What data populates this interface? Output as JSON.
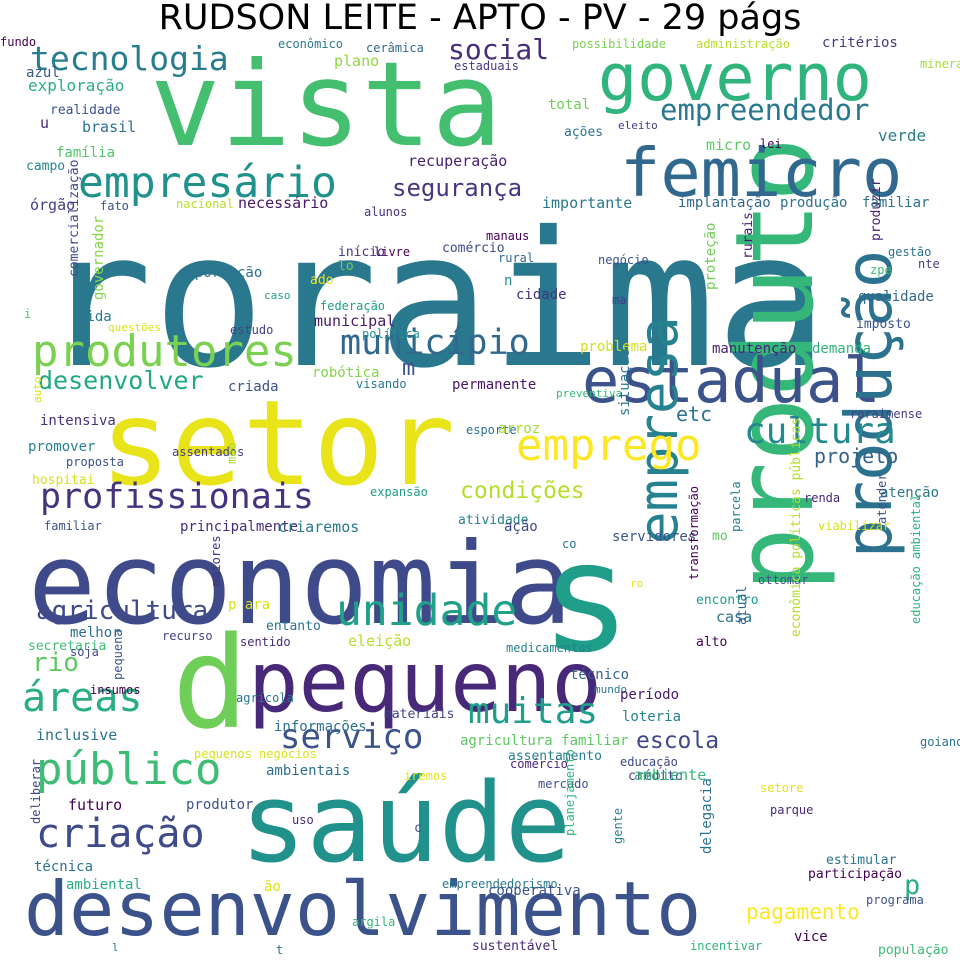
{
  "title": "RUDSON LEITE - APTO - PV - 29 págs",
  "colors": {
    "background": "#ffffff",
    "palette": [
      "#440154",
      "#414487",
      "#2a788e",
      "#22a884",
      "#7ad151",
      "#fde725"
    ]
  },
  "words": [
    {
      "text": "roraima",
      "color": "#2a788e",
      "v": 0
    },
    {
      "text": "setor",
      "color": "#e8e419",
      "v": 0
    },
    {
      "text": "economia",
      "color": "#3e4a89",
      "v": 0
    },
    {
      "text": "saúde",
      "color": "#21918c",
      "v": 0
    },
    {
      "text": "vista",
      "color": "#44bf70",
      "v": 0
    },
    {
      "text": "s",
      "color": "#1f9e89",
      "v": 0
    },
    {
      "text": "produto",
      "color": "#35b779",
      "v": 1
    },
    {
      "text": "d",
      "color": "#6ece58",
      "v": 0
    },
    {
      "text": "pequeno",
      "color": "#482878",
      "v": 0
    },
    {
      "text": "desenvolvimento",
      "color": "#3b528b",
      "v": 0
    },
    {
      "text": "governo",
      "color": "#2fb47c",
      "v": 0
    },
    {
      "text": "femicro",
      "color": "#31688e",
      "v": 0
    },
    {
      "text": "estadual",
      "color": "#3b528b",
      "v": 0
    },
    {
      "text": "produção",
      "color": "#2c728e",
      "v": 1
    },
    {
      "text": "empresa",
      "color": "#26828e",
      "v": 1
    },
    {
      "text": "produtores",
      "color": "#7ad151",
      "v": 0
    },
    {
      "text": "empresário",
      "color": "#21918c",
      "v": 0
    },
    {
      "text": "tecnologia",
      "color": "#287d8e",
      "v": 0
    },
    {
      "text": "público",
      "color": "#3dbc74",
      "v": 0
    },
    {
      "text": "unidade",
      "color": "#1fa088",
      "v": 0
    },
    {
      "text": "emprego",
      "color": "#fde725",
      "v": 0
    },
    {
      "text": "profissionais",
      "color": "#46337e",
      "v": 0
    },
    {
      "text": "município",
      "color": "#31688e",
      "v": 0
    },
    {
      "text": "cultura",
      "color": "#23898e",
      "v": 0
    },
    {
      "text": "criação",
      "color": "#3e4a89",
      "v": 0
    },
    {
      "text": "serviço",
      "color": "#3b528b",
      "v": 0
    },
    {
      "text": "muitas",
      "color": "#1f9e89",
      "v": 0
    },
    {
      "text": "áreas",
      "color": "#29af7f",
      "v": 0
    },
    {
      "text": "empreendedor",
      "color": "#2a788e",
      "v": 0
    },
    {
      "text": "agricultura",
      "color": "#3e4a89",
      "v": 0
    },
    {
      "text": "desenvolver",
      "color": "#22a884",
      "v": 0
    },
    {
      "text": "social",
      "color": "#472d7b",
      "v": 0
    },
    {
      "text": "segurança",
      "color": "#453882",
      "v": 0
    },
    {
      "text": "condições",
      "color": "#b5de2b",
      "v": 0
    },
    {
      "text": "p",
      "color": "#29af7f",
      "v": 0
    },
    {
      "text": "rio",
      "color": "#5ec962",
      "v": 0
    },
    {
      "text": "escola",
      "color": "#3f4788",
      "v": 0
    },
    {
      "text": "pagamento",
      "color": "#fde725",
      "v": 0
    },
    {
      "text": "projeto",
      "color": "#33638d",
      "v": 0
    },
    {
      "text": "etc",
      "color": "#2c728e",
      "v": 0
    },
    {
      "text": "m",
      "color": "#3b528b",
      "v": 0
    },
    {
      "text": "recuperação",
      "color": "#482173",
      "v": 0
    },
    {
      "text": "necessário",
      "color": "#481668",
      "v": 0
    },
    {
      "text": "importante",
      "color": "#2a788e",
      "v": 0
    },
    {
      "text": "implantação",
      "color": "#31688e",
      "v": 0
    },
    {
      "text": "produção",
      "color": "#2c728e",
      "v": 0
    },
    {
      "text": "familiar",
      "color": "#2c728e",
      "v": 0
    },
    {
      "text": "econômico",
      "color": "#2a788e",
      "v": 0
    },
    {
      "text": "cerâmica",
      "color": "#31688e",
      "v": 0
    },
    {
      "text": "estaduais",
      "color": "#453882",
      "v": 0
    },
    {
      "text": "possibilidade",
      "color": "#7ad151",
      "v": 0
    },
    {
      "text": "administração",
      "color": "#b8de29",
      "v": 0
    },
    {
      "text": "critérios",
      "color": "#443983",
      "v": 0
    },
    {
      "text": "azul",
      "color": "#38598c",
      "v": 0
    },
    {
      "text": "exploração",
      "color": "#29af7f",
      "v": 0
    },
    {
      "text": "plano",
      "color": "#90d743",
      "v": 0
    },
    {
      "text": "realidade",
      "color": "#3b528b",
      "v": 0
    },
    {
      "text": "u",
      "color": "#482677",
      "v": 0
    },
    {
      "text": "brasil",
      "color": "#2c728e",
      "v": 0
    },
    {
      "text": "família",
      "color": "#52c569",
      "v": 0
    },
    {
      "text": "campo",
      "color": "#23898e",
      "v": 0
    },
    {
      "text": "órgão",
      "color": "#433e85",
      "v": 0
    },
    {
      "text": "fato",
      "color": "#3b528b",
      "v": 0
    },
    {
      "text": "nacional",
      "color": "#b5de2b",
      "v": 0
    },
    {
      "text": "alunos",
      "color": "#463480",
      "v": 0
    },
    {
      "text": "total",
      "color": "#6ece58",
      "v": 0
    },
    {
      "text": "eleito",
      "color": "#443983",
      "v": 0
    },
    {
      "text": "ações",
      "color": "#2d708e",
      "v": 0
    },
    {
      "text": "micro",
      "color": "#5ec962",
      "v": 0
    },
    {
      "text": "lei",
      "color": "#440154",
      "v": 0
    },
    {
      "text": "verde",
      "color": "#287d8e",
      "v": 0
    },
    {
      "text": "mineração",
      "color": "#a5db36",
      "v": 0
    },
    {
      "text": "produzir",
      "color": "#481f70",
      "v": 1
    },
    {
      "text": "gestão",
      "color": "#2c728e",
      "v": 0
    },
    {
      "text": "zpe",
      "color": "#3dbc74",
      "v": 0
    },
    {
      "text": "nte",
      "color": "#433e85",
      "v": 0
    },
    {
      "text": "i",
      "color": "#52c569",
      "v": 0
    },
    {
      "text": "comercialização",
      "color": "#3e4a89",
      "v": 1
    },
    {
      "text": "exportação",
      "color": "#2c728e",
      "v": 0
    },
    {
      "text": "caso",
      "color": "#1fa088",
      "v": 0
    },
    {
      "text": "governador",
      "color": "#86d549",
      "v": 1
    },
    {
      "text": "vida",
      "color": "#2a788e",
      "v": 0
    },
    {
      "text": "questões",
      "color": "#d8e219",
      "v": 0
    },
    {
      "text": "início",
      "color": "#46327e",
      "v": 0
    },
    {
      "text": "livre",
      "color": "#440154",
      "v": 0
    },
    {
      "text": "comércio",
      "color": "#3e4a89",
      "v": 0
    },
    {
      "text": "lo",
      "color": "#6ece58",
      "v": 0
    },
    {
      "text": "ado",
      "color": "#e5e419",
      "v": 0
    },
    {
      "text": "federação",
      "color": "#1f9e89",
      "v": 0
    },
    {
      "text": "municipal",
      "color": "#481a6c",
      "v": 0
    },
    {
      "text": "política",
      "color": "#21918c",
      "v": 0
    },
    {
      "text": "estudo",
      "color": "#414487",
      "v": 0
    },
    {
      "text": "manaus",
      "color": "#440154",
      "v": 0
    },
    {
      "text": "rural",
      "color": "#31688e",
      "v": 0
    },
    {
      "text": "negócio",
      "color": "#3b528b",
      "v": 0
    },
    {
      "text": "n",
      "color": "#238a8d",
      "v": 0
    },
    {
      "text": "cidade",
      "color": "#46327e",
      "v": 0
    },
    {
      "text": "ma",
      "color": "#433e85",
      "v": 0
    },
    {
      "text": "proteção",
      "color": "#6ece58",
      "v": 1
    },
    {
      "text": "rurais",
      "color": "#481b6d",
      "v": 1
    },
    {
      "text": "qualidade",
      "color": "#31688e",
      "v": 0
    },
    {
      "text": "imposto",
      "color": "#3b528b",
      "v": 0
    },
    {
      "text": "problema",
      "color": "#d0e11c",
      "v": 0
    },
    {
      "text": "manutenção",
      "color": "#482475",
      "v": 0
    },
    {
      "text": "demanda",
      "color": "#2fb47c",
      "v": 0
    },
    {
      "text": "criada",
      "color": "#3b528b",
      "v": 0
    },
    {
      "text": "robótica",
      "color": "#86d549",
      "v": 0
    },
    {
      "text": "visando",
      "color": "#2a788e",
      "v": 0
    },
    {
      "text": "permanente",
      "color": "#481668",
      "v": 0
    },
    {
      "text": "preventiva",
      "color": "#35b779",
      "v": 0
    },
    {
      "text": "auto",
      "color": "#d8e219",
      "v": 1
    },
    {
      "text": "intensiva",
      "color": "#46327e",
      "v": 0
    },
    {
      "text": "esporte",
      "color": "#2c728e",
      "v": 0
    },
    {
      "text": "situação",
      "color": "#2a788e",
      "v": 1
    },
    {
      "text": "arroz",
      "color": "#a5db36",
      "v": 0
    },
    {
      "text": "roraimense",
      "color": "#433e85",
      "v": 0
    },
    {
      "text": "promover",
      "color": "#26828e",
      "v": 0
    },
    {
      "text": "proposta",
      "color": "#3b528b",
      "v": 0
    },
    {
      "text": "assentados",
      "color": "#433e85",
      "v": 0
    },
    {
      "text": "mão",
      "color": "#a5db36",
      "v": 1
    },
    {
      "text": "hospitai",
      "color": "#d8e219",
      "v": 0
    },
    {
      "text": "expansão",
      "color": "#1f9e89",
      "v": 0
    },
    {
      "text": "atenção",
      "color": "#2a788e",
      "v": 0
    },
    {
      "text": "renda",
      "color": "#482878",
      "v": 0
    },
    {
      "text": "familiar",
      "color": "#3b528b",
      "v": 0
    },
    {
      "text": "principalmente",
      "color": "#472d7b",
      "v": 0
    },
    {
      "text": "criaremos",
      "color": "#2a788e",
      "v": 0
    },
    {
      "text": "atividade",
      "color": "#287d8e",
      "v": 0
    },
    {
      "text": "ação",
      "color": "#3e4a89",
      "v": 0
    },
    {
      "text": "servidores",
      "color": "#39568c",
      "v": 0
    },
    {
      "text": "co",
      "color": "#2a788e",
      "v": 0
    },
    {
      "text": "mo",
      "color": "#5ec962",
      "v": 0
    },
    {
      "text": "parcela",
      "color": "#287d8e",
      "v": 1
    },
    {
      "text": "viabilizar",
      "color": "#d8e219",
      "v": 0
    },
    {
      "text": "atender",
      "color": "#3b528b",
      "v": 1
    },
    {
      "text": "maiores",
      "color": "#46327e",
      "v": 1
    },
    {
      "text": "ro",
      "color": "#e5e419",
      "v": 0
    },
    {
      "text": "transformação",
      "color": "#440154",
      "v": 1
    },
    {
      "text": "ottomar",
      "color": "#3b528b",
      "v": 0
    },
    {
      "text": "p ara",
      "color": "#d8e219",
      "v": 0
    },
    {
      "text": "encontro",
      "color": "#1f9e89",
      "v": 0
    },
    {
      "text": "casa",
      "color": "#2c728e",
      "v": 0
    },
    {
      "text": "melhor",
      "color": "#2c728e",
      "v": 0
    },
    {
      "text": "recurso",
      "color": "#414487",
      "v": 0
    },
    {
      "text": "entanto",
      "color": "#2c728e",
      "v": 0
    },
    {
      "text": "sentido",
      "color": "#482878",
      "v": 0
    },
    {
      "text": "eleição",
      "color": "#b5de2b",
      "v": 0
    },
    {
      "text": "secretaria",
      "color": "#3dbc74",
      "v": 0
    },
    {
      "text": "soja",
      "color": "#3e4a89",
      "v": 0
    },
    {
      "text": "medicamentos",
      "color": "#26828e",
      "v": 0
    },
    {
      "text": "alto",
      "color": "#440154",
      "v": 0
    },
    {
      "text": "atual",
      "color": "#33638d",
      "v": 1
    },
    {
      "text": "educação ambiental",
      "color": "#2fb47c",
      "v": 1
    },
    {
      "text": "econômica políticas públicas",
      "color": "#b5de2b",
      "v": 1
    },
    {
      "text": "pequena",
      "color": "#39568c",
      "v": 1
    },
    {
      "text": "insumos",
      "color": "#440154",
      "v": 0
    },
    {
      "text": "técnico",
      "color": "#33638d",
      "v": 0
    },
    {
      "text": "mundo",
      "color": "#2a788e",
      "v": 0
    },
    {
      "text": "período",
      "color": "#481a6c",
      "v": 0
    },
    {
      "text": "agrícola",
      "color": "#2a788e",
      "v": 0
    },
    {
      "text": "materiais",
      "color": "#414487",
      "v": 0
    },
    {
      "text": "loteria",
      "color": "#26828e",
      "v": 0
    },
    {
      "text": "informações",
      "color": "#2d708e",
      "v": 0
    },
    {
      "text": "inclusive",
      "color": "#2c728e",
      "v": 0
    },
    {
      "text": "agricultura familiar",
      "color": "#5ec962",
      "v": 0
    },
    {
      "text": "pequenos negócios",
      "color": "#d8e219",
      "v": 0
    },
    {
      "text": "ambientais",
      "color": "#2c728e",
      "v": 0
    },
    {
      "text": "assentamento",
      "color": "#287d8e",
      "v": 0
    },
    {
      "text": "educação",
      "color": "#3e4a89",
      "v": 0
    },
    {
      "text": "crédito",
      "color": "#414487",
      "v": 0
    },
    {
      "text": "iremos",
      "color": "#e5e419",
      "v": 0
    },
    {
      "text": "ambiente",
      "color": "#35b779",
      "v": 0
    },
    {
      "text": "mercado",
      "color": "#3b528b",
      "v": 0
    },
    {
      "text": "futuro",
      "color": "#440154",
      "v": 0
    },
    {
      "text": "produtor",
      "color": "#3b528b",
      "v": 0
    },
    {
      "text": "setore",
      "color": "#e5e419",
      "v": 0
    },
    {
      "text": "parque",
      "color": "#482878",
      "v": 0
    },
    {
      "text": "goiano",
      "color": "#2c728e",
      "v": 0
    },
    {
      "text": "deliberar",
      "color": "#414487",
      "v": 1
    },
    {
      "text": "uso",
      "color": "#472d7b",
      "v": 0
    },
    {
      "text": "comércio",
      "color": "#482878",
      "v": 0
    },
    {
      "text": "planejamento",
      "color": "#2fb47c",
      "v": 1
    },
    {
      "text": "gente",
      "color": "#26828e",
      "v": 1
    },
    {
      "text": "c",
      "color": "#3b528b",
      "v": 0
    },
    {
      "text": "delegacia",
      "color": "#2c728e",
      "v": 1
    },
    {
      "text": "estimular",
      "color": "#2c728e",
      "v": 0
    },
    {
      "text": "técnica",
      "color": "#2c728e",
      "v": 0
    },
    {
      "text": "ambiental",
      "color": "#29af7f",
      "v": 0
    },
    {
      "text": "empreendedorismo",
      "color": "#2a788e",
      "v": 0
    },
    {
      "text": "ão",
      "color": "#d8e219",
      "v": 0
    },
    {
      "text": "cooperativa",
      "color": "#3b528b",
      "v": 0
    },
    {
      "text": "participação",
      "color": "#440154",
      "v": 0
    },
    {
      "text": "programa",
      "color": "#3b528b",
      "v": 0
    },
    {
      "text": "argila",
      "color": "#35b779",
      "v": 0
    },
    {
      "text": "l",
      "color": "#2a788e",
      "v": 0
    },
    {
      "text": "t",
      "color": "#2c728e",
      "v": 0
    },
    {
      "text": "sustentável",
      "color": "#482878",
      "v": 0
    },
    {
      "text": "incentivar",
      "color": "#2fb47c",
      "v": 0
    },
    {
      "text": "vice",
      "color": "#440154",
      "v": 0
    },
    {
      "text": "população",
      "color": "#3dbc74",
      "v": 0
    },
    {
      "text": "fundo",
      "color": "#440154",
      "v": 0
    }
  ]
}
